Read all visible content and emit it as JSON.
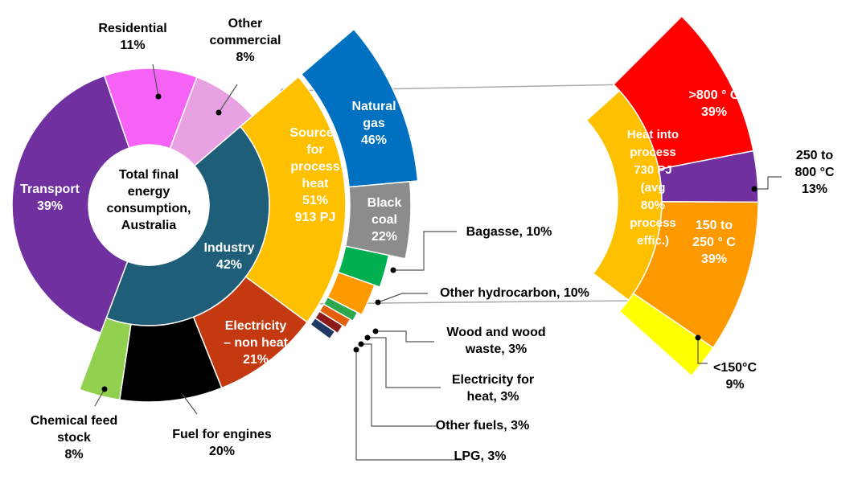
{
  "chart_data": [
    {
      "type": "donut",
      "center_label": "Total  final\nenergy\nconsumption,\nAustralia",
      "categories": [
        "Residential",
        "Other\ncommercial",
        "Industry",
        "Transport"
      ],
      "values": [
        11,
        8,
        42,
        39
      ],
      "value_labels": [
        "11%",
        "8%",
        "42%",
        "39%"
      ],
      "colors": [
        "#f562f5",
        "#e8a2e3",
        "#1f5e78",
        "#7030a0"
      ]
    },
    {
      "type": "donut",
      "categories": [
        "Sources\nfor\nprocess\nheat",
        "Electricity\n–  non heat",
        "Fuel for engines",
        "Chemical feed\nstock"
      ],
      "values": [
        51,
        21,
        20,
        8
      ],
      "value_labels": [
        "51%",
        "21%",
        "20%",
        "8%"
      ],
      "energy_labels": [
        "913 PJ",
        null,
        null,
        null
      ],
      "colors": [
        "#ffc000",
        "#c4390f",
        "#000000",
        "#92d050"
      ]
    },
    {
      "type": "donut",
      "categories": [
        "Natural\ngas",
        "Black\ncoal",
        "Bagasse, 10%",
        "Other hydrocarbon, 10%",
        "Wood and wood\nwaste, 3%",
        "Electricity for\nheat, 3%",
        "Other fuels, 3%",
        "LPG, 3%"
      ],
      "values": [
        46,
        22,
        10,
        10,
        3,
        3,
        3,
        3
      ],
      "value_labels": [
        "46%",
        "22%",
        null,
        null,
        null,
        null,
        null,
        null
      ],
      "colors": [
        "#0070c0",
        "#8c8c8c",
        "#00b050",
        "#ff9900",
        "#2ea84e",
        "#e4600a",
        "#8b1a1a",
        "#1f3864"
      ]
    },
    {
      "type": "donut",
      "center_label": "Heat into\nprocess\n730 PJ\n(avg\n80%\nprocess\neffic.)",
      "categories": [
        ">800 ° C",
        "250 to\n800 °C",
        "150 to\n250 ° C",
        "<150°C"
      ],
      "values": [
        39,
        13,
        39,
        9
      ],
      "value_labels": [
        "39%",
        "13%",
        "39%",
        "9%"
      ],
      "colors": [
        "#ff0000",
        "#7030a0",
        "#ff9900",
        "#ffff00"
      ]
    }
  ]
}
